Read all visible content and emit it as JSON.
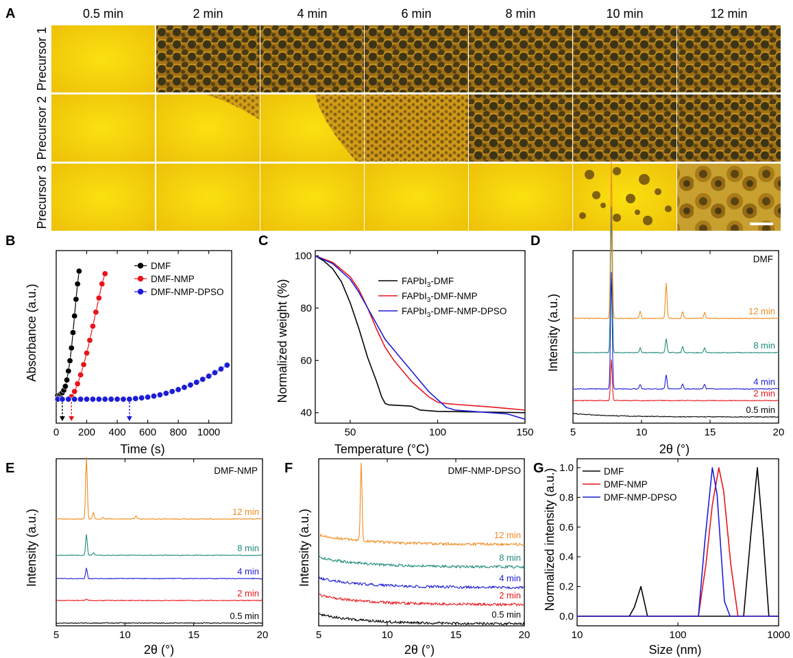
{
  "panel_a": {
    "letter": "A",
    "columns": [
      "0.5 min",
      "2 min",
      "4 min",
      "6 min",
      "8 min",
      "10 min",
      "12 min"
    ],
    "rows": [
      "Precursor 1",
      "Precursor 2",
      "Precursor 3"
    ]
  },
  "colors": {
    "black": "#000000",
    "red": "#e8141a",
    "blue": "#1c1cd6",
    "teal": "#1f8a7a",
    "orange": "#f08a1c",
    "film_yellow": "#f5cf05"
  },
  "chart_data": [
    {
      "id": "B",
      "letter": "B",
      "type": "scatter",
      "xlabel": "Time (s)",
      "ylabel": "Absorbance (a.u.)",
      "xlim": [
        0,
        1150
      ],
      "xticks": [
        "0",
        "200",
        "400",
        "600",
        "800",
        "1000"
      ],
      "legend_position": "top-right",
      "series": [
        {
          "name": "DMF",
          "color": "#000000",
          "onset": 40,
          "x": [
            10,
            20,
            30,
            40,
            50,
            60,
            70,
            80,
            90,
            100,
            110,
            120,
            130,
            140,
            150
          ],
          "y": [
            0.03,
            0.03,
            0.04,
            0.05,
            0.07,
            0.1,
            0.15,
            0.22,
            0.3,
            0.4,
            0.52,
            0.65,
            0.78,
            0.9,
            1.0
          ]
        },
        {
          "name": "DMF-NMP",
          "color": "#e8141a",
          "onset": 100,
          "x": [
            80,
            100,
            120,
            140,
            160,
            180,
            200,
            220,
            240,
            260,
            280,
            300,
            320
          ],
          "y": [
            0.0,
            0.02,
            0.06,
            0.12,
            0.19,
            0.27,
            0.36,
            0.46,
            0.57,
            0.68,
            0.79,
            0.9,
            0.98
          ]
        },
        {
          "name": "DMF-NMP-DPSO",
          "color": "#1c1cd6",
          "onset": 480,
          "x": [
            10,
            40,
            80,
            120,
            160,
            200,
            240,
            280,
            320,
            360,
            400,
            440,
            480,
            520,
            560,
            600,
            640,
            680,
            720,
            760,
            800,
            840,
            880,
            920,
            960,
            1000,
            1040,
            1080,
            1120
          ],
          "y": [
            0.0,
            0.0,
            0.0,
            0.0,
            0.0,
            0.0,
            0.0,
            0.0,
            0.0,
            0.0,
            0.0,
            0.0,
            0.0,
            0.005,
            0.01,
            0.016,
            0.024,
            0.034,
            0.046,
            0.06,
            0.075,
            0.092,
            0.111,
            0.132,
            0.155,
            0.18,
            0.207,
            0.236,
            0.266
          ]
        }
      ]
    },
    {
      "id": "C",
      "letter": "C",
      "type": "line",
      "xlabel": "Temperature (°C)",
      "ylabel": "Normalized weight (%)",
      "xlim": [
        30,
        150
      ],
      "ylim": [
        36,
        102
      ],
      "xticks": [
        50,
        100,
        150
      ],
      "yticks": [
        40,
        60,
        80,
        100
      ],
      "legend_position": "top-right",
      "series": [
        {
          "name": "FAPbI",
          "sub": "3",
          "suffix": "-DMF",
          "color": "#000000",
          "x": [
            30,
            35,
            40,
            45,
            50,
            55,
            60,
            65,
            68,
            70,
            72,
            80,
            85,
            90,
            100,
            120,
            150
          ],
          "y": [
            100,
            98,
            95,
            90,
            82,
            72,
            61,
            52,
            46,
            43.5,
            43,
            42.7,
            42.5,
            41,
            40.5,
            40.3,
            40
          ]
        },
        {
          "name": "FAPbI",
          "sub": "3",
          "suffix": "-DMF-NMP",
          "color": "#e8141a",
          "x": [
            30,
            40,
            50,
            55,
            60,
            65,
            70,
            75,
            80,
            85,
            90,
            95,
            100,
            105,
            110,
            120,
            130,
            140,
            150
          ],
          "y": [
            100,
            97.5,
            92,
            87,
            80,
            72,
            65,
            60,
            56,
            52,
            49,
            46,
            44,
            43.5,
            43.2,
            42.7,
            42.2,
            41.6,
            41
          ]
        },
        {
          "name": "FAPbI",
          "sub": "3",
          "suffix": "-DMF-NMP-DPSO",
          "color": "#1c1cd6",
          "x": [
            30,
            40,
            50,
            55,
            60,
            65,
            70,
            75,
            80,
            85,
            90,
            95,
            100,
            105,
            110,
            120,
            130,
            140,
            150
          ],
          "y": [
            100,
            97,
            91,
            86,
            80,
            74,
            68,
            64,
            60,
            56,
            52,
            48,
            45,
            42,
            41,
            40.5,
            40,
            39.5,
            37.5
          ]
        }
      ]
    },
    {
      "id": "D",
      "letter": "D",
      "type": "line",
      "annotation": "DMF",
      "xlabel": "2θ (°)",
      "ylabel": "Intensity (a.u.)",
      "xlim": [
        5,
        20
      ],
      "xticks": [
        5,
        10,
        15,
        20
      ],
      "traces": [
        {
          "label": "0.5 min",
          "color": "#000000",
          "peaks": []
        },
        {
          "label": "2 min",
          "color": "#e8141a",
          "peaks": [
            [
              7.8,
              0.35
            ]
          ]
        },
        {
          "label": "4 min",
          "color": "#1c1cd6",
          "peaks": [
            [
              7.8,
              1.0
            ],
            [
              11.8,
              0.12
            ],
            [
              9.9,
              0.04
            ],
            [
              13.0,
              0.04
            ],
            [
              14.6,
              0.04
            ]
          ]
        },
        {
          "label": "8 min",
          "color": "#1f8a7a",
          "peaks": [
            [
              7.8,
              1.25
            ],
            [
              11.8,
              0.12
            ],
            [
              9.9,
              0.04
            ],
            [
              13.0,
              0.05
            ],
            [
              14.6,
              0.04
            ]
          ]
        },
        {
          "label": "12 min",
          "color": "#f08a1c",
          "peaks": [
            [
              7.8,
              1.35
            ],
            [
              11.8,
              0.3
            ],
            [
              9.9,
              0.06
            ],
            [
              13.0,
              0.06
            ],
            [
              14.6,
              0.05
            ]
          ]
        }
      ]
    },
    {
      "id": "E",
      "letter": "E",
      "type": "line",
      "annotation": "DMF-NMP",
      "xlabel": "2θ (°)",
      "ylabel": "Intensity (a.u.)",
      "xlim": [
        5,
        20
      ],
      "xticks": [
        5,
        10,
        15,
        20
      ],
      "traces": [
        {
          "label": "0.5 min",
          "color": "#000000",
          "peaks": []
        },
        {
          "label": "2 min",
          "color": "#e8141a",
          "peaks": [
            [
              7.2,
              0.03
            ]
          ]
        },
        {
          "label": "4 min",
          "color": "#1c1cd6",
          "peaks": [
            [
              7.2,
              0.25
            ]
          ]
        },
        {
          "label": "8 min",
          "color": "#1f8a7a",
          "peaks": [
            [
              7.2,
              0.5
            ],
            [
              7.7,
              0.06
            ]
          ]
        },
        {
          "label": "12 min",
          "color": "#f08a1c",
          "peaks": [
            [
              7.2,
              1.5
            ],
            [
              7.7,
              0.15
            ],
            [
              8.4,
              0.04
            ],
            [
              10.8,
              0.08
            ]
          ]
        }
      ]
    },
    {
      "id": "F",
      "letter": "F",
      "type": "line",
      "annotation": "DMF-NMP-DPSO",
      "xlabel": "2θ (°)",
      "ylabel": "Intensity (a.u.)",
      "xlim": [
        5,
        20
      ],
      "xticks": [
        5,
        10,
        15,
        20
      ],
      "traces": [
        {
          "label": "0.5 min",
          "color": "#000000",
          "peaks": []
        },
        {
          "label": "2 min",
          "color": "#e8141a",
          "peaks": []
        },
        {
          "label": "4 min",
          "color": "#1c1cd6",
          "peaks": []
        },
        {
          "label": "8 min",
          "color": "#1f8a7a",
          "peaks": []
        },
        {
          "label": "12 min",
          "color": "#f08a1c",
          "peaks": [
            [
              8.1,
              1.35
            ]
          ]
        }
      ]
    },
    {
      "id": "G",
      "letter": "G",
      "type": "line",
      "xscale": "log",
      "xlabel": "Size (nm)",
      "ylabel": "Normalized intensity (a.u.)",
      "xlim": [
        10,
        1000
      ],
      "ylim": [
        0,
        1.0
      ],
      "xticks": [
        10,
        100,
        1000
      ],
      "yticks": [
        "0.0",
        "0.2",
        "0.4",
        "0.6",
        "0.8",
        "1.0"
      ],
      "legend_position": "top-left",
      "series": [
        {
          "name": "DMF",
          "color": "#000000",
          "x": [
            10,
            33,
            37,
            43,
            50,
            300,
            450,
            530,
            615,
            700,
            800,
            1000
          ],
          "y": [
            0,
            0,
            0.06,
            0.2,
            0,
            0,
            0,
            0.55,
            1.0,
            0.55,
            0,
            0
          ]
        },
        {
          "name": "DMF-NMP",
          "color": "#e8141a",
          "x": [
            10,
            160,
            190,
            220,
            255,
            285,
            335,
            395,
            1000
          ],
          "y": [
            0,
            0,
            0.35,
            0.75,
            1.0,
            0.84,
            0.35,
            0,
            0
          ]
        },
        {
          "name": "DMF-NMP-DPSO",
          "color": "#1c1cd6",
          "x": [
            10,
            160,
            185,
            220,
            245,
            290,
            330,
            1000
          ],
          "y": [
            0,
            0,
            0.5,
            1.0,
            0.82,
            0.1,
            0,
            0
          ]
        }
      ]
    }
  ]
}
